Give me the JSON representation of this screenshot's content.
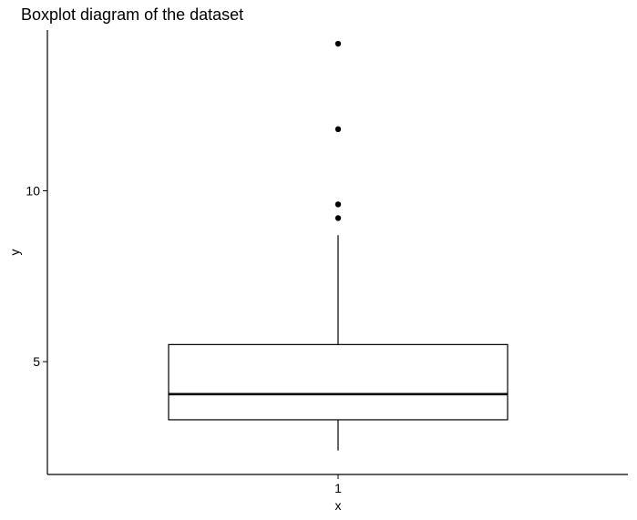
{
  "chart_data": {
    "type": "boxplot",
    "title": "Boxplot diagram of the dataset",
    "xlabel": "x",
    "ylabel": "y",
    "categories": [
      "1"
    ],
    "y_ticks": [
      5,
      10
    ],
    "ylim": [
      1.7,
      14.7
    ],
    "box": {
      "category": "1",
      "min": 2.4,
      "q1": 3.3,
      "median": 4.05,
      "q3": 5.5,
      "max": 8.7,
      "outliers": [
        9.2,
        9.6,
        11.8,
        14.3
      ]
    },
    "grid": false,
    "legend": "none",
    "colors": {
      "background": "#ffffff",
      "line": "#000000",
      "box_fill": "#ffffff",
      "outlier": "#000000"
    }
  }
}
